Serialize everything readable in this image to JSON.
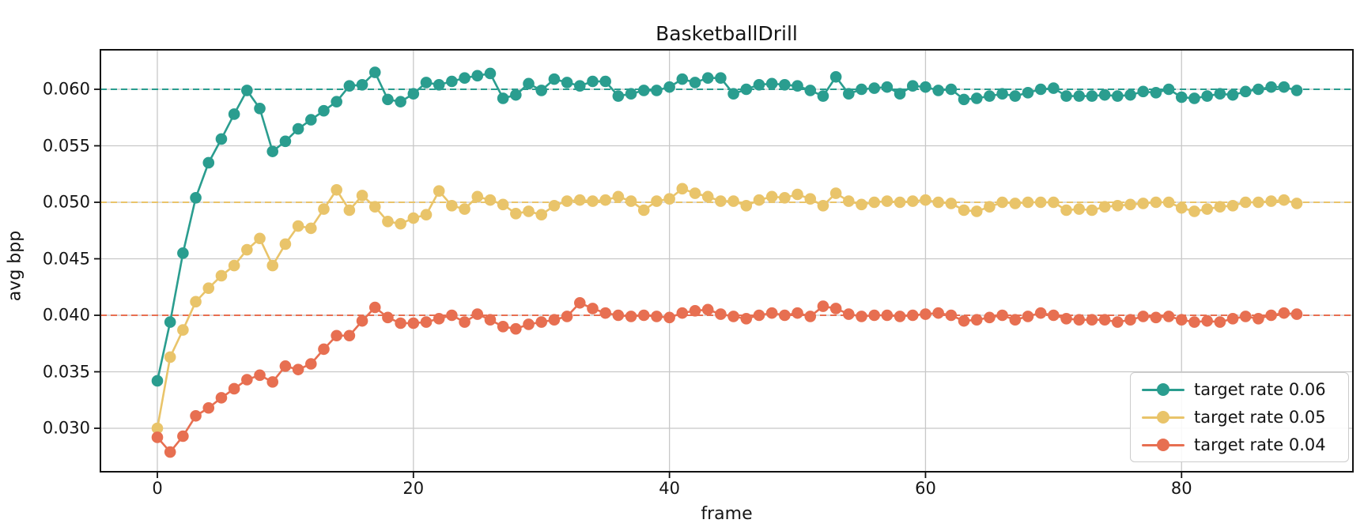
{
  "chart_data": {
    "type": "line",
    "title": "BasketballDrill",
    "xlabel": "frame",
    "ylabel": "avg bpp",
    "grid": true,
    "grid_color": "#c8c8c8",
    "spine_color": "#111111",
    "legend_position": "lower right",
    "xlim": [
      -4.5,
      93
    ],
    "ylim": [
      0.0262,
      0.0635
    ],
    "x_ticks": [
      0,
      20,
      40,
      60,
      80
    ],
    "x_tick_labels": [
      "0",
      "20",
      "40",
      "60",
      "80"
    ],
    "y_ticks": [
      0.06,
      0.055,
      0.05,
      0.045,
      0.04,
      0.035,
      0.03
    ],
    "y_tick_labels": [
      "0.060",
      "0.055",
      "0.050",
      "0.045",
      "0.040",
      "0.035",
      "0.030"
    ],
    "x_start": 0,
    "x_step": 1,
    "series": [
      {
        "name": "target rate 0.06",
        "color": "#2a9d8f",
        "target": 0.06,
        "target_line_style": "dashed",
        "values": [
          0.0342,
          0.0394,
          0.0455,
          0.0504,
          0.0535,
          0.0556,
          0.0578,
          0.0599,
          0.0583,
          0.0545,
          0.0554,
          0.0565,
          0.0573,
          0.0581,
          0.0589,
          0.0603,
          0.0604,
          0.0615,
          0.0591,
          0.0589,
          0.0596,
          0.0606,
          0.0604,
          0.0607,
          0.061,
          0.0612,
          0.0614,
          0.0592,
          0.0595,
          0.0605,
          0.0599,
          0.0609,
          0.0606,
          0.0603,
          0.0607,
          0.0607,
          0.0594,
          0.0596,
          0.0599,
          0.0599,
          0.0602,
          0.0609,
          0.0606,
          0.061,
          0.061,
          0.0596,
          0.06,
          0.0604,
          0.0605,
          0.0604,
          0.0603,
          0.0599,
          0.0594,
          0.0611,
          0.0596,
          0.06,
          0.0601,
          0.0602,
          0.0596,
          0.0603,
          0.0602,
          0.0599,
          0.06,
          0.0591,
          0.0592,
          0.0594,
          0.0596,
          0.0594,
          0.0597,
          0.06,
          0.0601,
          0.0594,
          0.0594,
          0.0594,
          0.0595,
          0.0594,
          0.0595,
          0.0598,
          0.0597,
          0.06,
          0.0593,
          0.0592,
          0.0594,
          0.0596,
          0.0595,
          0.0598,
          0.06,
          0.0602,
          0.0602,
          0.0599
        ]
      },
      {
        "name": "target rate 0.05",
        "color": "#e9c46a",
        "target": 0.05,
        "target_line_style": "dashed",
        "values": [
          0.03,
          0.0363,
          0.0387,
          0.0412,
          0.0424,
          0.0435,
          0.0444,
          0.0458,
          0.0468,
          0.0444,
          0.0463,
          0.0479,
          0.0477,
          0.0494,
          0.0511,
          0.0493,
          0.0506,
          0.0496,
          0.0483,
          0.0481,
          0.0486,
          0.0489,
          0.051,
          0.0497,
          0.0494,
          0.0505,
          0.0502,
          0.0498,
          0.049,
          0.0492,
          0.0489,
          0.0497,
          0.0501,
          0.0502,
          0.0501,
          0.0502,
          0.0505,
          0.0501,
          0.0493,
          0.0501,
          0.0503,
          0.0512,
          0.0508,
          0.0505,
          0.0501,
          0.0501,
          0.0497,
          0.0502,
          0.0505,
          0.0504,
          0.0507,
          0.0503,
          0.0497,
          0.0508,
          0.0501,
          0.0498,
          0.05,
          0.0501,
          0.05,
          0.0501,
          0.0502,
          0.05,
          0.0499,
          0.0493,
          0.0492,
          0.0496,
          0.05,
          0.0499,
          0.05,
          0.05,
          0.05,
          0.0493,
          0.0494,
          0.0493,
          0.0496,
          0.0497,
          0.0498,
          0.0499,
          0.05,
          0.05,
          0.0495,
          0.0492,
          0.0494,
          0.0496,
          0.0497,
          0.05,
          0.05,
          0.0501,
          0.0502,
          0.0499
        ]
      },
      {
        "name": "target rate 0.04",
        "color": "#e76f51",
        "target": 0.04,
        "target_line_style": "dashed",
        "values": [
          0.0292,
          0.0279,
          0.0293,
          0.0311,
          0.0318,
          0.0327,
          0.0335,
          0.0343,
          0.0347,
          0.0341,
          0.0355,
          0.0352,
          0.0357,
          0.037,
          0.0382,
          0.0382,
          0.0395,
          0.0407,
          0.0398,
          0.0393,
          0.0393,
          0.0394,
          0.0397,
          0.04,
          0.0394,
          0.0401,
          0.0396,
          0.039,
          0.0388,
          0.0392,
          0.0394,
          0.0396,
          0.0399,
          0.0411,
          0.0406,
          0.0402,
          0.04,
          0.0399,
          0.04,
          0.0399,
          0.0398,
          0.0402,
          0.0404,
          0.0405,
          0.0401,
          0.0399,
          0.0397,
          0.04,
          0.0402,
          0.04,
          0.0402,
          0.0399,
          0.0408,
          0.0406,
          0.0401,
          0.0399,
          0.04,
          0.04,
          0.0399,
          0.04,
          0.0401,
          0.0402,
          0.04,
          0.0395,
          0.0396,
          0.0398,
          0.04,
          0.0396,
          0.0399,
          0.0402,
          0.04,
          0.0397,
          0.0396,
          0.0396,
          0.0396,
          0.0394,
          0.0396,
          0.0399,
          0.0398,
          0.0399,
          0.0396,
          0.0394,
          0.0395,
          0.0394,
          0.0397,
          0.0399,
          0.0397,
          0.04,
          0.0402,
          0.0401
        ]
      }
    ]
  }
}
